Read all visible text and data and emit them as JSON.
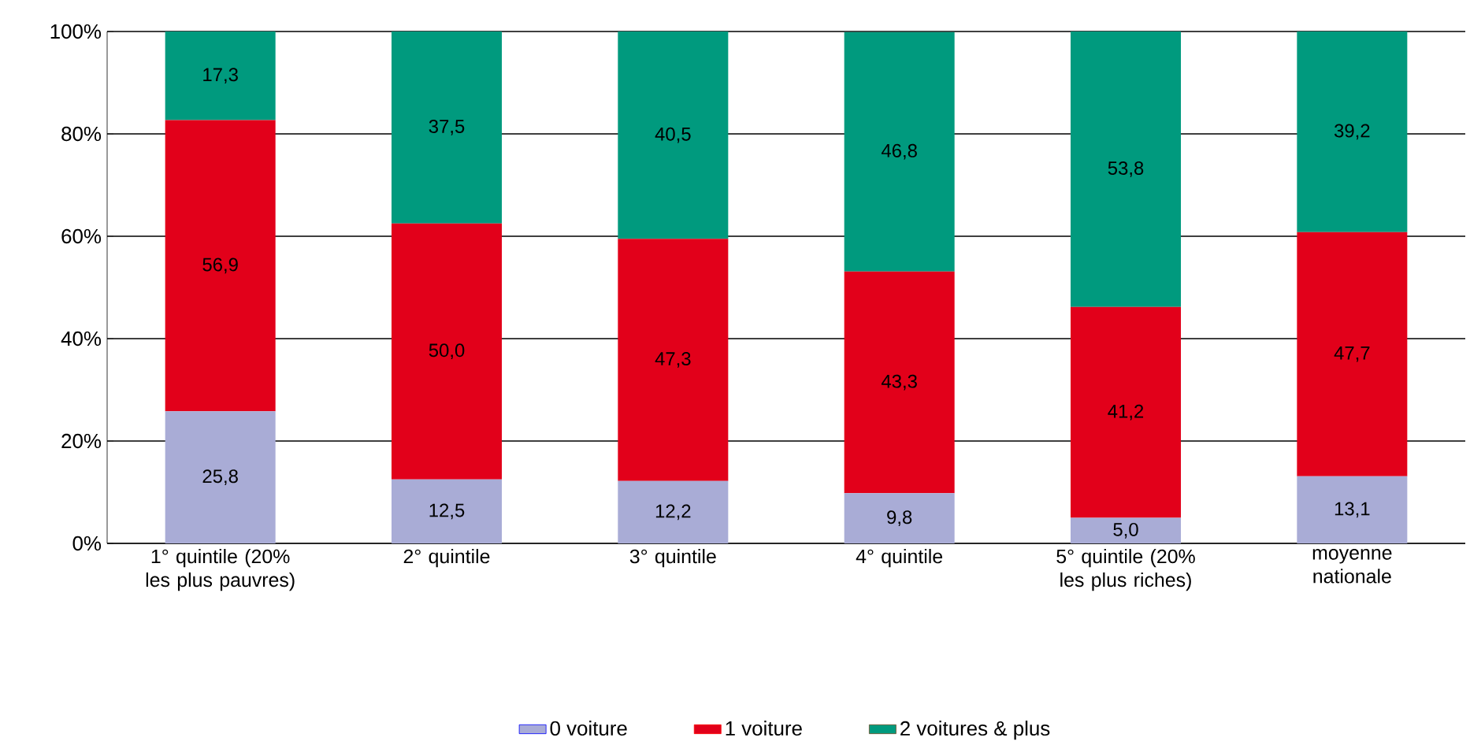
{
  "chart_data": {
    "type": "bar",
    "stacked": true,
    "categories": [
      "1° quintile (20% les plus pauvres)",
      "2° quintile",
      "3° quintile",
      "4° quintile",
      "5° quintile (20% les plus riches)",
      "moyenne nationale"
    ],
    "series": [
      {
        "name": "0 voiture",
        "color": "#a9acd6",
        "values": [
          25.8,
          12.5,
          12.2,
          9.8,
          5.0,
          13.1
        ],
        "value_labels": [
          "25,8",
          "12,5",
          "12,2",
          "9,8",
          "5,0",
          "13,1"
        ]
      },
      {
        "name": "1 voiture",
        "color": "#e2001a",
        "values": [
          56.9,
          50.0,
          47.3,
          43.3,
          41.2,
          47.7
        ],
        "value_labels": [
          "56,9",
          "50,0",
          "47,3",
          "43,3",
          "41,2",
          "47,7"
        ]
      },
      {
        "name": "2 voitures & plus",
        "color": "#009a7e",
        "values": [
          17.3,
          37.5,
          40.5,
          46.8,
          53.8,
          39.2
        ],
        "value_labels": [
          "17,3",
          "37,5",
          "40,5",
          "46,8",
          "53,8",
          "39,2"
        ]
      }
    ],
    "ylim": [
      0,
      100
    ],
    "yticks": [
      {
        "value": 0,
        "label": "0%"
      },
      {
        "value": 20,
        "label": "20%"
      },
      {
        "value": 40,
        "label": "40%"
      },
      {
        "value": 60,
        "label": "60%"
      },
      {
        "value": 80,
        "label": "80%"
      },
      {
        "value": 100,
        "label": "100%"
      }
    ],
    "grid": "y",
    "legend": "bottom"
  }
}
